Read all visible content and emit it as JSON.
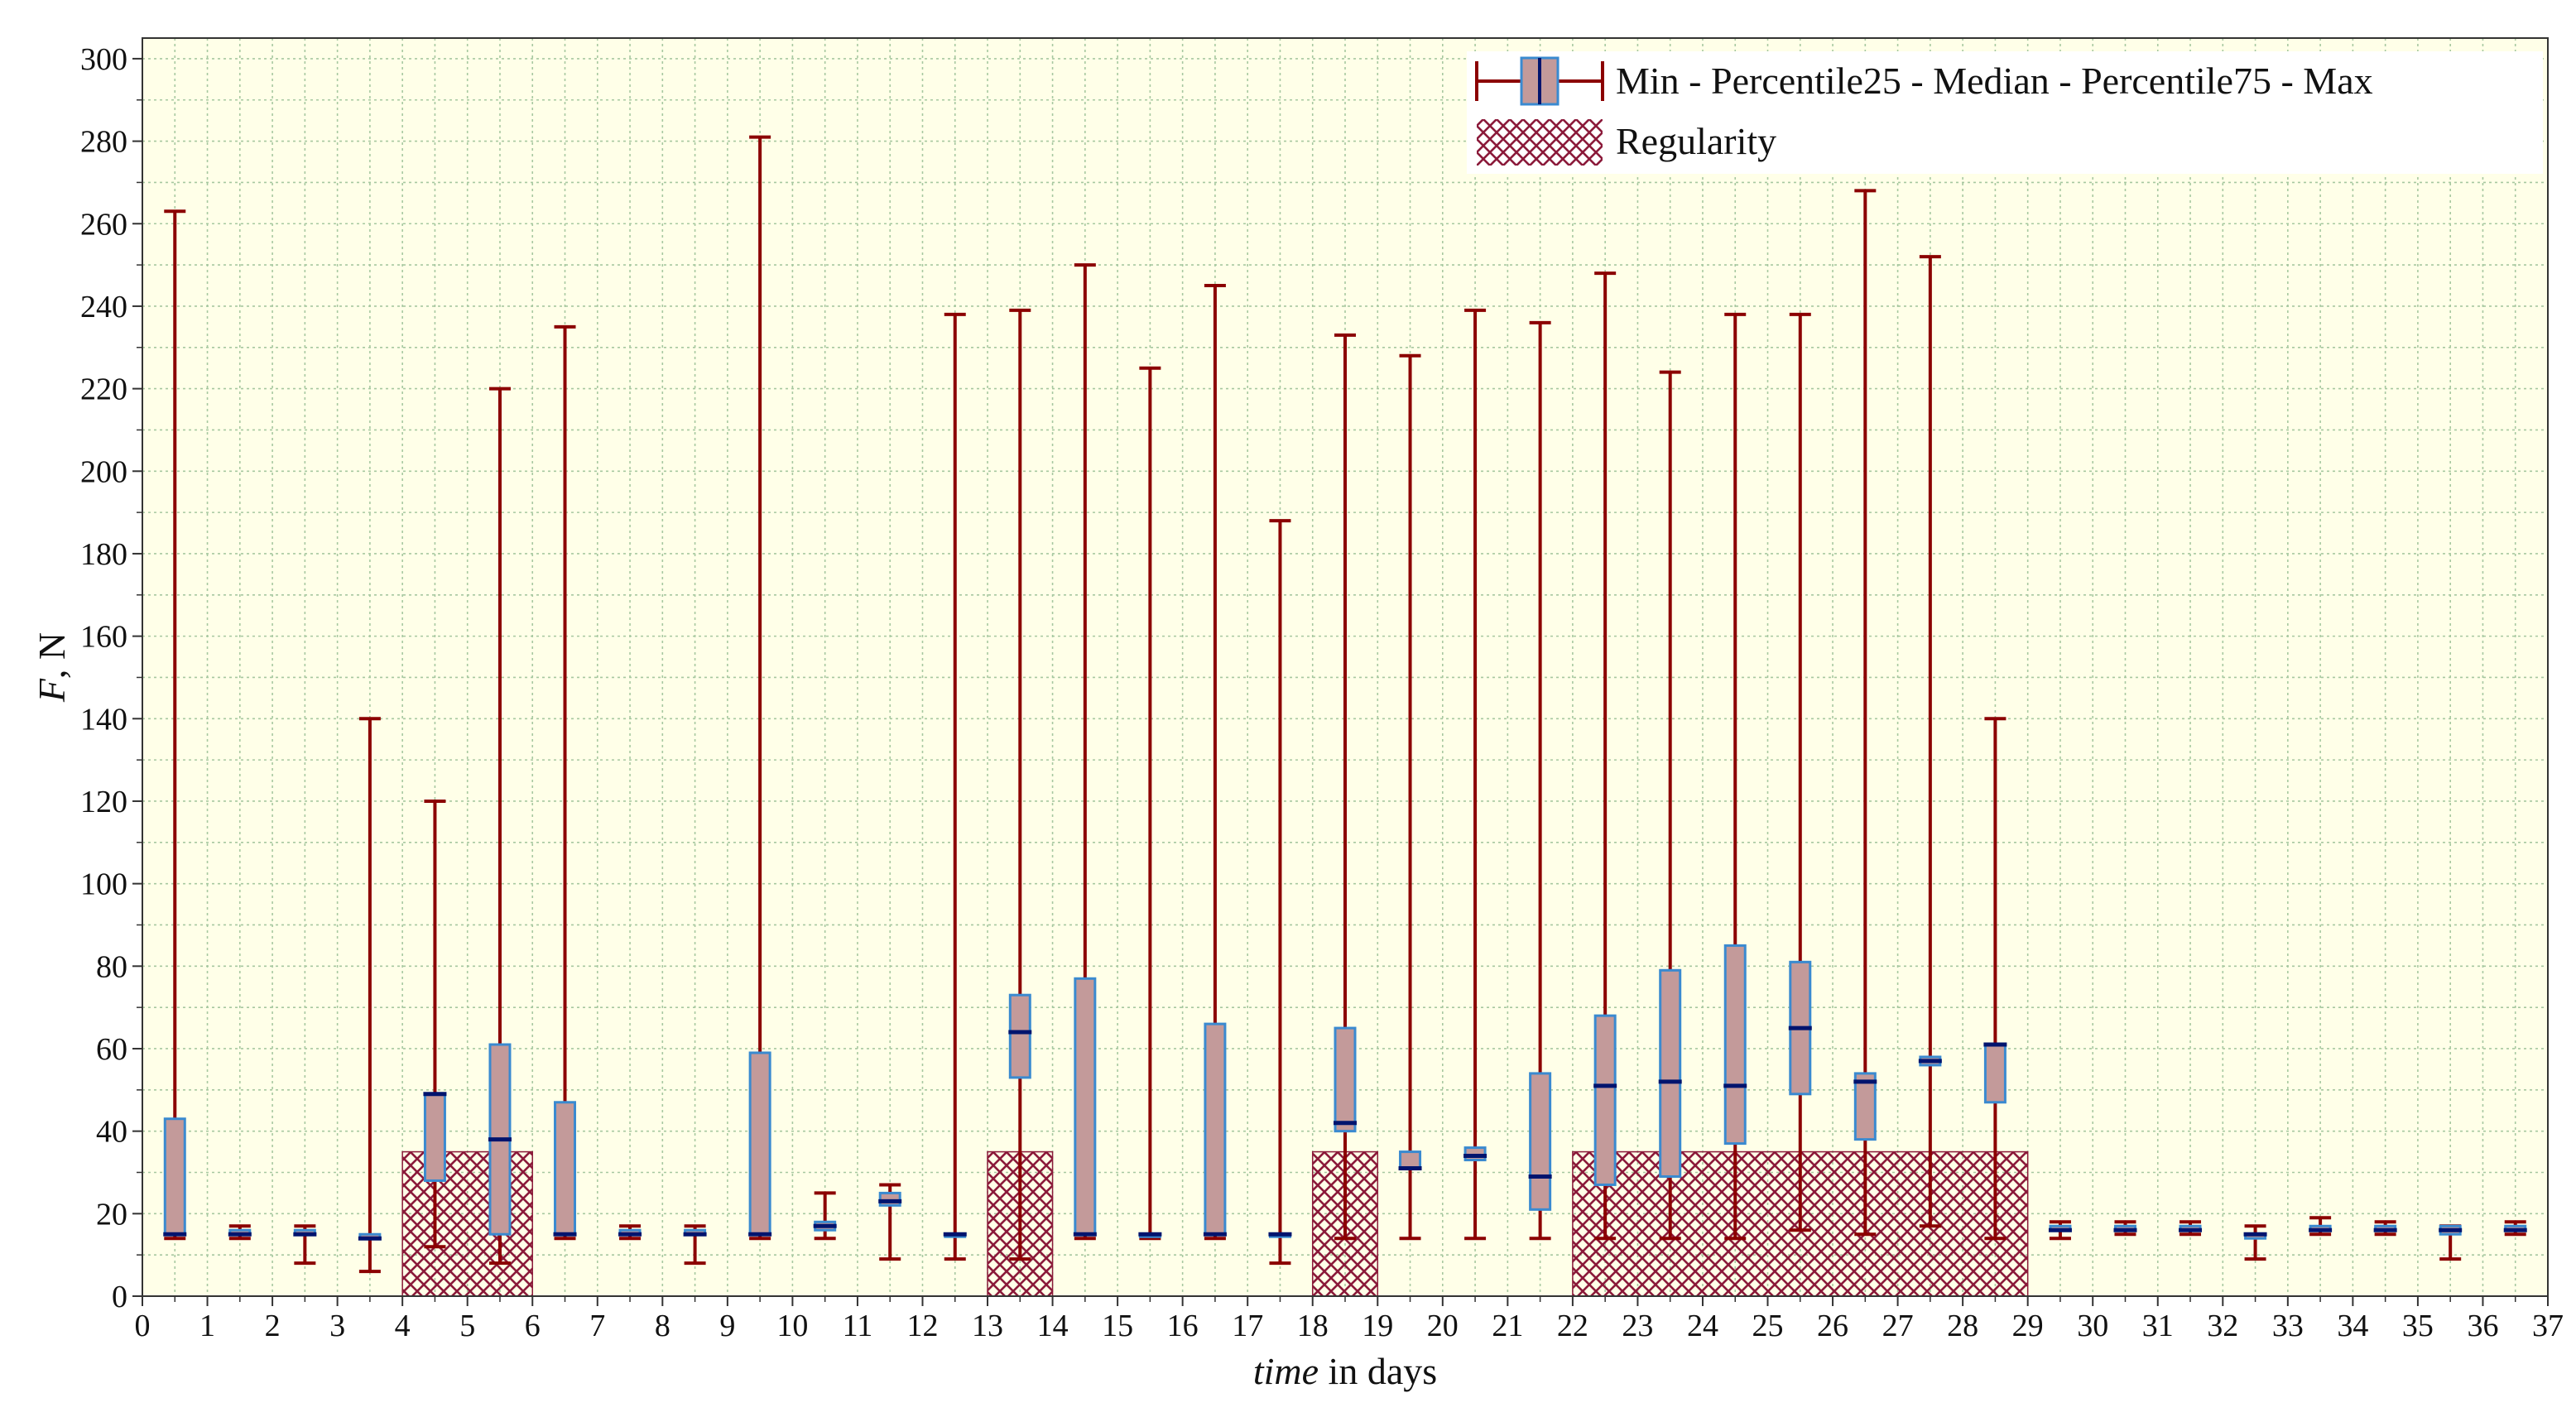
{
  "chart_data": {
    "type": "box",
    "xlabel_italic": "time",
    "xlabel_rest": " in days",
    "ylabel_italic": "F",
    "ylabel_rest": ", N",
    "xlim": [
      0,
      37
    ],
    "ylim": [
      0,
      305
    ],
    "x_ticks": [
      0,
      1,
      2,
      3,
      4,
      5,
      6,
      7,
      8,
      9,
      10,
      11,
      12,
      13,
      14,
      15,
      16,
      17,
      18,
      19,
      20,
      21,
      22,
      23,
      24,
      25,
      26,
      27,
      28,
      29,
      30,
      31,
      32,
      33,
      34,
      35,
      36,
      37
    ],
    "y_ticks": [
      0,
      20,
      40,
      60,
      80,
      100,
      120,
      140,
      160,
      180,
      200,
      220,
      240,
      260,
      280,
      300
    ],
    "grid": true,
    "legend_position": "top-right",
    "legend": {
      "box_entry": "Min - Percentile25 - Median - Percentile75 - Max",
      "regularity_entry": "Regularity"
    },
    "colors": {
      "background": "#ffffe8",
      "grid": "#a7c8a0",
      "whisker": "#8b0000",
      "box_fill": "#c39a9a",
      "box_edge": "#3a8ad0",
      "median": "#00146e",
      "hatch": "#8b1a3a"
    },
    "regularity_intervals": [
      [
        4,
        6
      ],
      [
        13,
        14
      ],
      [
        18,
        19
      ],
      [
        22,
        29
      ]
    ],
    "regularity_height": 35,
    "boxes": [
      {
        "x": 0.5,
        "min": 14,
        "q1": 15,
        "median": 15,
        "q3": 43,
        "max": 263
      },
      {
        "x": 1.5,
        "min": 14,
        "q1": 15,
        "median": 15,
        "q3": 16,
        "max": 17
      },
      {
        "x": 2.5,
        "min": 8,
        "q1": 15,
        "median": 15,
        "q3": 16,
        "max": 17
      },
      {
        "x": 3.5,
        "min": 6,
        "q1": 14,
        "median": 14,
        "q3": 15,
        "max": 140
      },
      {
        "x": 4.5,
        "min": 12,
        "q1": 28,
        "median": 49,
        "q3": 49,
        "max": 120
      },
      {
        "x": 5.5,
        "min": 8,
        "q1": 15,
        "median": 38,
        "q3": 61,
        "max": 220
      },
      {
        "x": 6.5,
        "min": 14,
        "q1": 15,
        "median": 15,
        "q3": 47,
        "max": 235
      },
      {
        "x": 7.5,
        "min": 14,
        "q1": 15,
        "median": 15,
        "q3": 16,
        "max": 17
      },
      {
        "x": 8.5,
        "min": 8,
        "q1": 15,
        "median": 15,
        "q3": 16,
        "max": 17
      },
      {
        "x": 9.5,
        "min": 14,
        "q1": 15,
        "median": 15,
        "q3": 59,
        "max": 281
      },
      {
        "x": 10.5,
        "min": 14,
        "q1": 16,
        "median": 17,
        "q3": 18,
        "max": 25
      },
      {
        "x": 11.5,
        "min": 9,
        "q1": 22,
        "median": 23,
        "q3": 25,
        "max": 27
      },
      {
        "x": 12.5,
        "min": 9,
        "q1": 15,
        "median": 15,
        "q3": 15,
        "max": 238
      },
      {
        "x": 13.5,
        "min": 9,
        "q1": 53,
        "median": 64,
        "q3": 73,
        "max": 239
      },
      {
        "x": 14.5,
        "min": 14,
        "q1": 15,
        "median": 15,
        "q3": 77,
        "max": 250
      },
      {
        "x": 15.5,
        "min": 14,
        "q1": 15,
        "median": 15,
        "q3": 15,
        "max": 225
      },
      {
        "x": 16.5,
        "min": 14,
        "q1": 15,
        "median": 15,
        "q3": 66,
        "max": 245
      },
      {
        "x": 17.5,
        "min": 8,
        "q1": 15,
        "median": 15,
        "q3": 15,
        "max": 188
      },
      {
        "x": 18.5,
        "min": 14,
        "q1": 40,
        "median": 42,
        "q3": 65,
        "max": 233
      },
      {
        "x": 19.5,
        "min": 14,
        "q1": 31,
        "median": 31,
        "q3": 35,
        "max": 228
      },
      {
        "x": 20.5,
        "min": 14,
        "q1": 33,
        "median": 34,
        "q3": 36,
        "max": 239
      },
      {
        "x": 21.5,
        "min": 14,
        "q1": 21,
        "median": 29,
        "q3": 54,
        "max": 236
      },
      {
        "x": 22.5,
        "min": 14,
        "q1": 27,
        "median": 51,
        "q3": 68,
        "max": 248
      },
      {
        "x": 23.5,
        "min": 14,
        "q1": 29,
        "median": 52,
        "q3": 79,
        "max": 224
      },
      {
        "x": 24.5,
        "min": 14,
        "q1": 37,
        "median": 51,
        "q3": 85,
        "max": 238
      },
      {
        "x": 25.5,
        "min": 16,
        "q1": 49,
        "median": 65,
        "q3": 81,
        "max": 238
      },
      {
        "x": 26.5,
        "min": 15,
        "q1": 38,
        "median": 52,
        "q3": 54,
        "max": 268
      },
      {
        "x": 27.5,
        "min": 17,
        "q1": 56,
        "median": 57,
        "q3": 58,
        "max": 252
      },
      {
        "x": 28.5,
        "min": 14,
        "q1": 47,
        "median": 61,
        "q3": 61,
        "max": 140
      },
      {
        "x": 29.5,
        "min": 14,
        "q1": 16,
        "median": 16,
        "q3": 17,
        "max": 18
      },
      {
        "x": 30.5,
        "min": 15,
        "q1": 16,
        "median": 16,
        "q3": 17,
        "max": 18
      },
      {
        "x": 31.5,
        "min": 15,
        "q1": 16,
        "median": 16,
        "q3": 17,
        "max": 18
      },
      {
        "x": 32.5,
        "min": 9,
        "q1": 14,
        "median": 15,
        "q3": 15,
        "max": 17
      },
      {
        "x": 33.5,
        "min": 15,
        "q1": 16,
        "median": 16,
        "q3": 17,
        "max": 19
      },
      {
        "x": 34.5,
        "min": 15,
        "q1": 16,
        "median": 16,
        "q3": 17,
        "max": 18
      },
      {
        "x": 35.5,
        "min": 9,
        "q1": 15,
        "median": 16,
        "q3": 17,
        "max": 17
      },
      {
        "x": 36.5,
        "min": 15,
        "q1": 16,
        "median": 16,
        "q3": 17,
        "max": 18
      }
    ]
  }
}
